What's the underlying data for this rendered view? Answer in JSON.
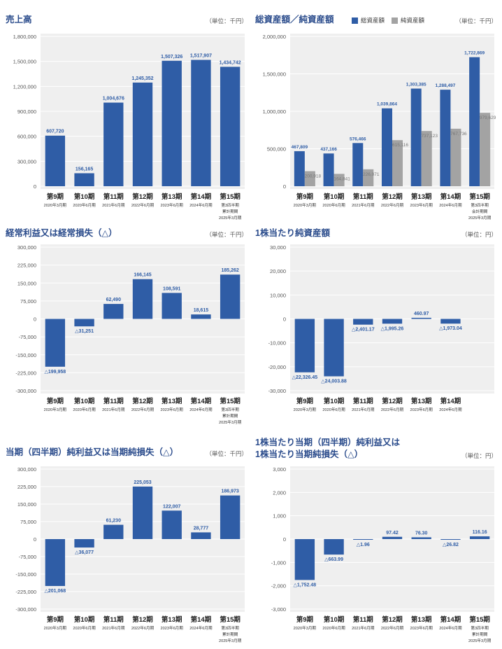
{
  "colors": {
    "primary": "#2f5da6",
    "secondary": "#a3a3a3",
    "plot_bg": "#efefef",
    "grid": "#ffffff",
    "title": "#2b4c8c"
  },
  "chart_data": [
    {
      "id": "sales",
      "type": "bar",
      "title": "売上高",
      "unit": "（単位：千円）",
      "ylim": [
        0,
        1800000
      ],
      "yticks": [
        0,
        300000,
        600000,
        900000,
        1200000,
        1500000,
        1800000
      ],
      "ytick_labels": [
        "0",
        "300,000",
        "600,000",
        "900,000",
        "1,200,000",
        "1,500,000",
        "1,800,000"
      ],
      "categories": [
        "第9期",
        "第10期",
        "第11期",
        "第12期",
        "第13期",
        "第14期",
        "第15期"
      ],
      "sublabels": [
        [
          "2020年3月期"
        ],
        [
          "2020年6月期"
        ],
        [
          "2021年6月期"
        ],
        [
          "2022年6月期"
        ],
        [
          "2023年6月期"
        ],
        [
          "2024年6月期"
        ],
        [
          "第3四半期",
          "累計期間",
          "2025年3月期"
        ]
      ],
      "series": [
        {
          "values": [
            607720,
            156165,
            1004676,
            1245352,
            1507326,
            1517907,
            1434742
          ],
          "labels": [
            "607,720",
            "156,165",
            "1,004,676",
            "1,245,352",
            "1,507,326",
            "1,517,907",
            "1,434,742"
          ]
        }
      ]
    },
    {
      "id": "assets",
      "type": "bar",
      "title": "総資産額／純資産額",
      "unit": "（単位：千円）",
      "legend": [
        "総資産額",
        "純資産額"
      ],
      "ylim": [
        0,
        2000000
      ],
      "yticks": [
        0,
        500000,
        1000000,
        1500000,
        2000000
      ],
      "ytick_labels": [
        "0",
        "500,000",
        "1,000,000",
        "1,500,000",
        "2,000,000"
      ],
      "categories": [
        "第9期",
        "第10期",
        "第11期",
        "第12期",
        "第13期",
        "第14期",
        "第15期"
      ],
      "sublabels": [
        [
          "2020年3月期"
        ],
        [
          "2020年6月期"
        ],
        [
          "2021年6月期"
        ],
        [
          "2022年6月期"
        ],
        [
          "2023年6月期"
        ],
        [
          "2024年6月期"
        ],
        [
          "第3四半期",
          "会計期間",
          "2025年3月期"
        ]
      ],
      "series": [
        {
          "name": "総資産額",
          "values": [
            467809,
            437166,
            576466,
            1039864,
            1303385,
            1288497,
            1722869
          ],
          "labels": [
            "467,809",
            "437,166",
            "576,466",
            "1,039,864",
            "1,303,385",
            "1,288,497",
            "1,722,869"
          ]
        },
        {
          "name": "純資産額",
          "values": [
            200918,
            164841,
            226071,
            615116,
            737123,
            767736,
            979629
          ],
          "labels": [
            "200,918",
            "164,841",
            "226,071",
            "615,116",
            "737,123",
            "767,736",
            "979,629"
          ]
        }
      ]
    },
    {
      "id": "ordinary",
      "type": "bar",
      "title": "経常利益又は経常損失（△）",
      "unit": "（単位：千円）",
      "ylim": [
        -300000,
        300000
      ],
      "yticks": [
        -300000,
        -225000,
        -150000,
        -75000,
        0,
        75000,
        150000,
        225000,
        300000
      ],
      "ytick_labels": [
        "-300,000",
        "-225,000",
        "-150,000",
        "-75,000",
        "0",
        "75,000",
        "150,000",
        "225,000",
        "300,000"
      ],
      "categories": [
        "第9期",
        "第10期",
        "第11期",
        "第12期",
        "第13期",
        "第14期",
        "第15期"
      ],
      "sublabels": [
        [
          "2020年3月期"
        ],
        [
          "2020年6月期"
        ],
        [
          "2021年6月期"
        ],
        [
          "2022年6月期"
        ],
        [
          "2023年6月期"
        ],
        [
          "2024年6月期"
        ],
        [
          "第3四半期",
          "累計期間",
          "2025年3月期"
        ]
      ],
      "series": [
        {
          "values": [
            -199958,
            -31251,
            62490,
            166145,
            108591,
            18615,
            185262
          ],
          "labels": [
            "△199,958",
            "△31,251",
            "62,490",
            "166,145",
            "108,591",
            "18,615",
            "185,262"
          ]
        }
      ]
    },
    {
      "id": "bps",
      "type": "bar",
      "title": "1株当たり純資産額",
      "unit": "（単位：円）",
      "ylim": [
        -30000,
        30000
      ],
      "yticks": [
        -30000,
        -20000,
        -10000,
        0,
        10000,
        20000,
        30000
      ],
      "ytick_labels": [
        "-30,000",
        "-20,000",
        "-10,000",
        "0",
        "10,000",
        "20,000",
        "30,000"
      ],
      "categories": [
        "第9期",
        "第10期",
        "第11期",
        "第12期",
        "第13期",
        "第14期"
      ],
      "sublabels": [
        [
          "2020年3月期"
        ],
        [
          "2020年6月期"
        ],
        [
          "2021年6月期"
        ],
        [
          "2022年6月期"
        ],
        [
          "2023年6月期"
        ],
        [
          "2024年6月期"
        ]
      ],
      "series": [
        {
          "values": [
            -22326.45,
            -24003.88,
            -2401.17,
            -1995.26,
            460.97,
            -1973.04
          ],
          "labels": [
            "△22,326.45",
            "△24,003.88",
            "△2,401.17",
            "△1,995.26",
            "460.97",
            "△1,973.04"
          ]
        }
      ]
    },
    {
      "id": "net",
      "type": "bar",
      "title": "当期（四半期）純利益又は当期純損失（△）",
      "unit": "（単位：千円）",
      "ylim": [
        -300000,
        300000
      ],
      "yticks": [
        -300000,
        -225000,
        -150000,
        -75000,
        0,
        75000,
        150000,
        225000,
        300000
      ],
      "ytick_labels": [
        "-300,000",
        "-225,000",
        "-150,000",
        "-75,000",
        "0",
        "75,000",
        "150,000",
        "225,000",
        "300,000"
      ],
      "categories": [
        "第9期",
        "第10期",
        "第11期",
        "第12期",
        "第13期",
        "第14期",
        "第15期"
      ],
      "sublabels": [
        [
          "2020年3月期"
        ],
        [
          "2020年6月期"
        ],
        [
          "2021年6月期"
        ],
        [
          "2022年6月期"
        ],
        [
          "2023年6月期"
        ],
        [
          "2024年6月期"
        ],
        [
          "第3四半期",
          "累計期間",
          "2025年3月期"
        ]
      ],
      "series": [
        {
          "values": [
            -201068,
            -36077,
            61230,
            225053,
            122007,
            28777,
            186973
          ],
          "labels": [
            "△201,068",
            "△36,077",
            "61,230",
            "225,053",
            "122,007",
            "28,777",
            "186,973"
          ]
        }
      ]
    },
    {
      "id": "eps",
      "type": "bar",
      "title": "1株当たり当期（四半期）純利益又は",
      "title2": "1株当たり当期純損失（△）",
      "unit": "（単位：円）",
      "ylim": [
        -3000,
        3000
      ],
      "yticks": [
        -3000,
        -2000,
        -1000,
        0,
        1000,
        2000,
        3000
      ],
      "ytick_labels": [
        "-3,000",
        "-2,000",
        "-1,000",
        "0",
        "1,000",
        "2,000",
        "3,000"
      ],
      "categories": [
        "第9期",
        "第10期",
        "第11期",
        "第12期",
        "第13期",
        "第14期",
        "第15期"
      ],
      "sublabels": [
        [
          "2020年3月期"
        ],
        [
          "2020年6月期"
        ],
        [
          "2021年6月期"
        ],
        [
          "2022年6月期"
        ],
        [
          "2023年6月期"
        ],
        [
          "2024年6月期"
        ],
        [
          "第3四半期",
          "累計期間",
          "2025年3月期"
        ]
      ],
      "series": [
        {
          "values": [
            -1752.48,
            -663.99,
            -1.96,
            97.42,
            76.3,
            -26.82,
            116.16
          ],
          "labels": [
            "△1,752.48",
            "△663.99",
            "△1.96",
            "97.42",
            "76.30",
            "△26.82",
            "116.16"
          ]
        }
      ]
    }
  ]
}
